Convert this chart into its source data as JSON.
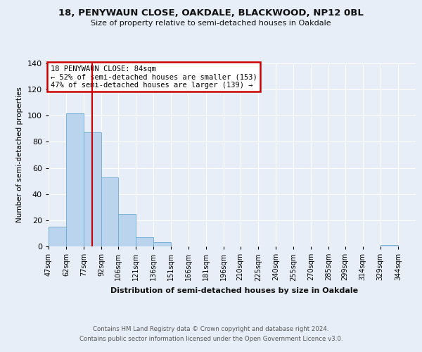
{
  "title1": "18, PENYWAUN CLOSE, OAKDALE, BLACKWOOD, NP12 0BL",
  "title2": "Size of property relative to semi-detached houses in Oakdale",
  "xlabel": "Distribution of semi-detached houses by size in Oakdale",
  "ylabel": "Number of semi-detached properties",
  "footer1": "Contains HM Land Registry data © Crown copyright and database right 2024.",
  "footer2": "Contains public sector information licensed under the Open Government Licence v3.0.",
  "annotation_title": "18 PENYWAUN CLOSE: 84sqm",
  "annotation_line1": "← 52% of semi-detached houses are smaller (153)",
  "annotation_line2": "47% of semi-detached houses are larger (139) →",
  "property_sqm": 84,
  "bar_labels": [
    "47sqm",
    "62sqm",
    "77sqm",
    "92sqm",
    "106sqm",
    "121sqm",
    "136sqm",
    "151sqm",
    "166sqm",
    "181sqm",
    "196sqm",
    "210sqm",
    "225sqm",
    "240sqm",
    "255sqm",
    "270sqm",
    "285sqm",
    "299sqm",
    "314sqm",
    "329sqm",
    "344sqm"
  ],
  "bar_edges": [
    47,
    62,
    77,
    92,
    106,
    121,
    136,
    151,
    166,
    181,
    196,
    210,
    225,
    240,
    255,
    270,
    285,
    299,
    314,
    329,
    344
  ],
  "bar_heights": [
    15,
    102,
    87,
    53,
    25,
    7,
    3,
    0,
    0,
    0,
    0,
    0,
    0,
    0,
    0,
    0,
    0,
    0,
    0,
    1,
    0
  ],
  "bar_color": "#bad4ed",
  "bar_edge_color": "#6aaad4",
  "highlight_line_color": "#cc0000",
  "annotation_box_color": "#ffffff",
  "annotation_box_edge": "#cc0000",
  "bg_color": "#e8eef7",
  "plot_bg_color": "#e8eef7",
  "grid_color": "#ffffff",
  "ylim": [
    0,
    140
  ],
  "yticks": [
    0,
    20,
    40,
    60,
    80,
    100,
    120,
    140
  ]
}
